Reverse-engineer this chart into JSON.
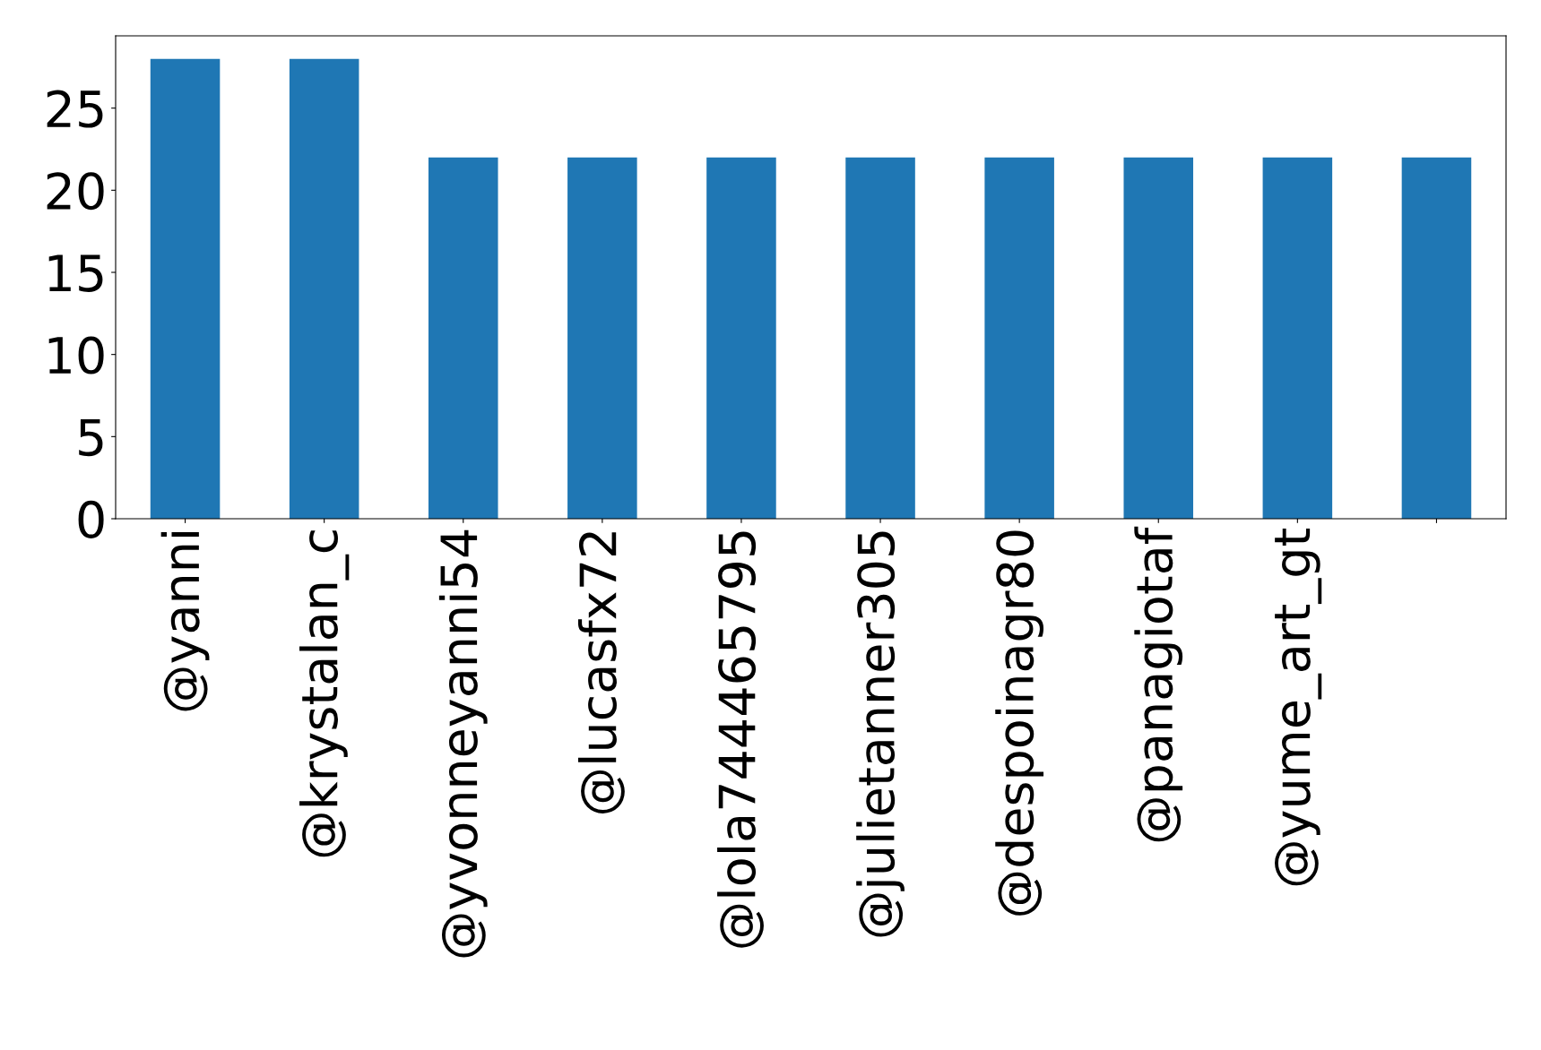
{
  "chart_data": {
    "type": "bar",
    "categories": [
      "@yanni",
      "@krystalan_c",
      "@yvonneyanni54",
      "@lucasfx72",
      "@lola744465795",
      "@julietanner305",
      "@despoinagr80",
      "@panagiotaf",
      "@yume_art_gt",
      null
    ],
    "values": [
      28,
      28,
      22,
      22,
      22,
      22,
      22,
      22,
      22,
      22
    ],
    "color": "#1f77b4",
    "ylim": [
      0,
      29.4
    ],
    "yticks": [
      0,
      5,
      10,
      15,
      20,
      25
    ],
    "grid": false,
    "legend": false
  }
}
